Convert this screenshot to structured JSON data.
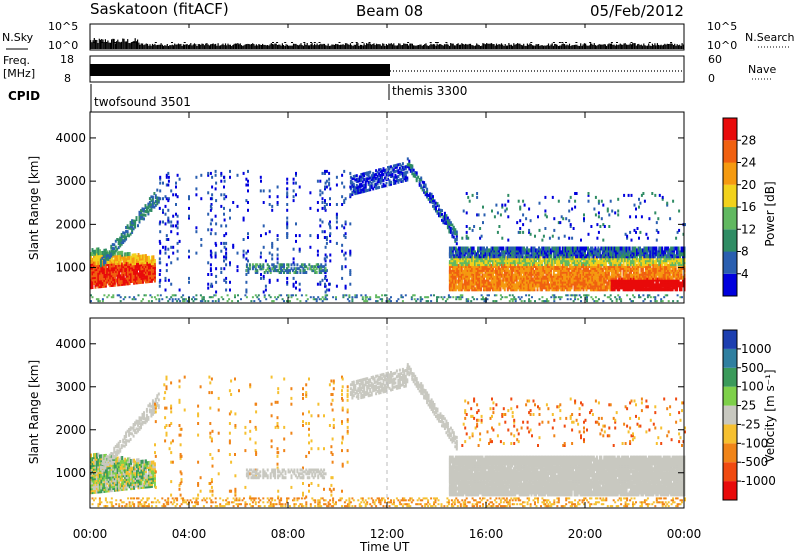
{
  "header": {
    "station": "Saskatoon (fitACF)",
    "beam": "Beam 08",
    "date": "05/Feb/2012"
  },
  "status_panel": {
    "nsky_label": "N.Sky",
    "nsky_ticks": [
      "10^5",
      "10^0"
    ],
    "nsearch_label": "N.Search",
    "nsearch_ticks": [
      "10^5",
      "10^0"
    ],
    "freq_label": "Freq.",
    "freq_unit": "[MHz]",
    "freq_ticks": [
      "18",
      "8"
    ],
    "freq_range": [
      8,
      18
    ],
    "nave_label": "Nave",
    "nave_ticks": [
      "60",
      "0"
    ],
    "nave_range": [
      0,
      60
    ],
    "cpid_label": "CPID",
    "programs": [
      {
        "name": "twofsound 3501",
        "start_hour": 0,
        "end_hour": 12
      },
      {
        "name": "themis 3300",
        "start_hour": 12,
        "end_hour": 24
      }
    ]
  },
  "x_axis": {
    "label": "Time UT",
    "ticks": [
      "00:00",
      "04:00",
      "08:00",
      "12:00",
      "16:00",
      "20:00",
      "00:00"
    ],
    "range_hours": [
      0,
      24
    ]
  },
  "power_panel": {
    "ylabel": "Slant Range [km]",
    "yticks": [
      "1000",
      "2000",
      "3000",
      "4000"
    ],
    "ylim": [
      180,
      4600
    ],
    "colorbar_label": "Power [dB]",
    "colorbar_ticks": [
      "4",
      "8",
      "12",
      "16",
      "20",
      "24",
      "28"
    ],
    "colorbar_range": [
      0,
      32
    ],
    "colors": [
      "#0000dd",
      "#2a5fb0",
      "#2f8c64",
      "#61b860",
      "#f2d21c",
      "#f59a10",
      "#f06010",
      "#e80a0a"
    ]
  },
  "velocity_panel": {
    "ylabel": "Slant Range [km]",
    "yticks": [
      "1000",
      "2000",
      "3000",
      "4000"
    ],
    "ylim": [
      180,
      4600
    ],
    "colorbar_label": "Velocity [m s⁻¹]",
    "colorbar_ticks": [
      "1000",
      "500",
      "100",
      "25",
      "-25",
      "-100",
      "-500",
      "-1000"
    ],
    "colors": [
      "#1d3fb0",
      "#2f7fa0",
      "#3a9a5a",
      "#7ed04a",
      "#c8c8c0",
      "#f6c030",
      "#f08418",
      "#f04a10",
      "#e80a0a"
    ]
  },
  "chart_data": [
    {
      "type": "heatmap",
      "title": "Saskatoon (fitACF) Beam 08 05/Feb/2012",
      "xlabel": "Time UT",
      "ylabel": "Slant Range [km]",
      "quantity": "Power [dB]",
      "xlim_hours": [
        0,
        24
      ],
      "ylim_km": [
        180,
        4600
      ],
      "features": [
        {
          "t_hours": [
            0.0,
            2.5
          ],
          "range_km": [
            500,
            1500
          ],
          "power_db": 26
        },
        {
          "t_hours": [
            0.5,
            2.7
          ],
          "range_km": [
            900,
            2700
          ],
          "power_db": 8
        },
        {
          "t_hours": [
            6.3,
            9.5
          ],
          "range_km": [
            800,
            1100
          ],
          "power_db": 12
        },
        {
          "t_hours": [
            10.5,
            12.8
          ],
          "range_km": [
            2700,
            3300
          ],
          "power_db": 6
        },
        {
          "t_hours": [
            12.8,
            14.7
          ],
          "range_km": [
            1400,
            3300
          ],
          "power_db": 10
        },
        {
          "t_hours": [
            14.5,
            24.0
          ],
          "range_km": [
            400,
            1400
          ],
          "power_db": 22
        }
      ]
    },
    {
      "type": "heatmap",
      "title": "Saskatoon (fitACF) Beam 08 05/Feb/2012",
      "xlabel": "Time UT",
      "ylabel": "Slant Range [km]",
      "quantity": "Velocity [m s^-1]",
      "xlim_hours": [
        0,
        24
      ],
      "ylim_km": [
        180,
        4600
      ],
      "features": [
        {
          "t_hours": [
            0.0,
            2.5
          ],
          "range_km": [
            500,
            1500
          ],
          "velocity_ms": 100
        },
        {
          "t_hours": [
            0.5,
            2.7
          ],
          "range_km": [
            900,
            2700
          ],
          "velocity_ms": 0
        },
        {
          "t_hours": [
            10.5,
            12.8
          ],
          "range_km": [
            2700,
            3300
          ],
          "velocity_ms": 0
        },
        {
          "t_hours": [
            14.5,
            24.0
          ],
          "range_km": [
            400,
            1400
          ],
          "velocity_ms": 0
        },
        {
          "t_hours": [
            0.0,
            24.0
          ],
          "range_km": [
            200,
            450
          ],
          "velocity_ms": -100
        }
      ]
    }
  ]
}
